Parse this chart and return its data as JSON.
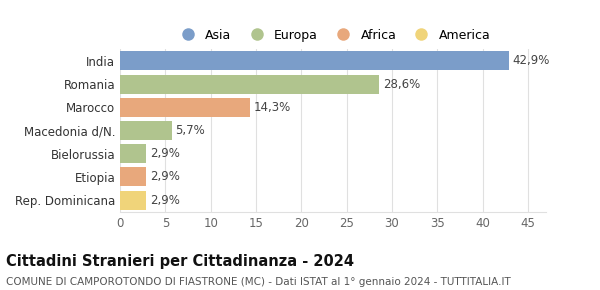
{
  "categories": [
    "India",
    "Romania",
    "Marocco",
    "Macedonia d/N.",
    "Bielorussia",
    "Etiopia",
    "Rep. Dominicana"
  ],
  "values": [
    42.9,
    28.6,
    14.3,
    5.7,
    2.9,
    2.9,
    2.9
  ],
  "labels": [
    "42,9%",
    "28,6%",
    "14,3%",
    "5,7%",
    "2,9%",
    "2,9%",
    "2,9%"
  ],
  "bar_colors": [
    "#7b9dc9",
    "#b0c48e",
    "#e8a87c",
    "#b0c48e",
    "#b0c48e",
    "#e8a87c",
    "#f0d47a"
  ],
  "legend_items": [
    {
      "label": "Asia",
      "color": "#7b9dc9"
    },
    {
      "label": "Europa",
      "color": "#b0c48e"
    },
    {
      "label": "Africa",
      "color": "#e8a87c"
    },
    {
      "label": "America",
      "color": "#f0d47a"
    }
  ],
  "title": "Cittadini Stranieri per Cittadinanza - 2024",
  "subtitle": "COMUNE DI CAMPOROTONDO DI FIASTRONE (MC) - Dati ISTAT al 1° gennaio 2024 - TUTTITALIA.IT",
  "xlim": [
    0,
    47
  ],
  "xticks": [
    0,
    5,
    10,
    15,
    20,
    25,
    30,
    35,
    40,
    45
  ],
  "background_color": "#ffffff",
  "grid_color": "#e0e0e0",
  "bar_height": 0.82,
  "label_fontsize": 8.5,
  "title_fontsize": 10.5,
  "subtitle_fontsize": 7.5,
  "tick_fontsize": 8.5,
  "legend_fontsize": 9
}
